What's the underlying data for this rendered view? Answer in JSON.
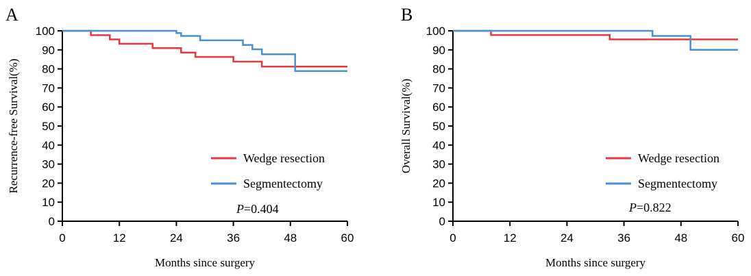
{
  "chart_data": [
    {
      "panel": "A",
      "type": "line",
      "xlabel": "Months since surgery",
      "ylabel": "Recurrence-free Survival(%)",
      "x_ticks": [
        0,
        12,
        24,
        36,
        48,
        60
      ],
      "y_ticks": [
        0,
        10,
        20,
        30,
        40,
        50,
        60,
        70,
        80,
        90,
        100
      ],
      "xlim": [
        0,
        60
      ],
      "ylim": [
        0,
        100
      ],
      "step": true,
      "legend_position": "bottom-right",
      "p_value": {
        "italic": "P",
        "rest": "=0.404"
      },
      "series": [
        {
          "name": "Wedge resection",
          "color": "#e8363e",
          "x": [
            0,
            6,
            6,
            10,
            10,
            12,
            12,
            19,
            19,
            25,
            25,
            28,
            28,
            36,
            36,
            42,
            42,
            60
          ],
          "y": [
            100,
            100,
            97.7,
            97.7,
            95.5,
            95.5,
            93.2,
            93.2,
            90.9,
            90.9,
            88.6,
            88.6,
            86.3,
            86.3,
            83.8,
            83.8,
            81.2,
            81.2
          ]
        },
        {
          "name": "Segmentectomy",
          "color": "#4a8fcf",
          "x": [
            0,
            24,
            24,
            25,
            25,
            29,
            29,
            38,
            38,
            40,
            40,
            42,
            42,
            49,
            49,
            60
          ],
          "y": [
            100,
            100,
            98.8,
            98.8,
            97.3,
            97.3,
            95.0,
            95.0,
            92.6,
            92.6,
            90.3,
            90.3,
            87.7,
            87.7,
            78.9,
            78.9
          ]
        }
      ]
    },
    {
      "panel": "B",
      "type": "line",
      "xlabel": "Months since surgery",
      "ylabel": "Overall Survival(%)",
      "x_ticks": [
        0,
        12,
        24,
        36,
        48,
        60
      ],
      "y_ticks": [
        0,
        10,
        20,
        30,
        40,
        50,
        60,
        70,
        80,
        90,
        100
      ],
      "xlim": [
        0,
        60
      ],
      "ylim": [
        0,
        100
      ],
      "step": true,
      "legend_position": "bottom-right",
      "p_value": {
        "italic": "P",
        "rest": "=0.822"
      },
      "series": [
        {
          "name": "Wedge resection",
          "color": "#e8363e",
          "x": [
            0,
            8,
            8,
            33,
            33,
            60
          ],
          "y": [
            100,
            100,
            97.8,
            97.8,
            95.5,
            95.5
          ]
        },
        {
          "name": "Segmentectomy",
          "color": "#4a8fcf",
          "x": [
            0,
            42,
            42,
            50,
            50,
            60
          ],
          "y": [
            100,
            100,
            97.3,
            97.3,
            90.0,
            90.0
          ]
        }
      ]
    }
  ]
}
